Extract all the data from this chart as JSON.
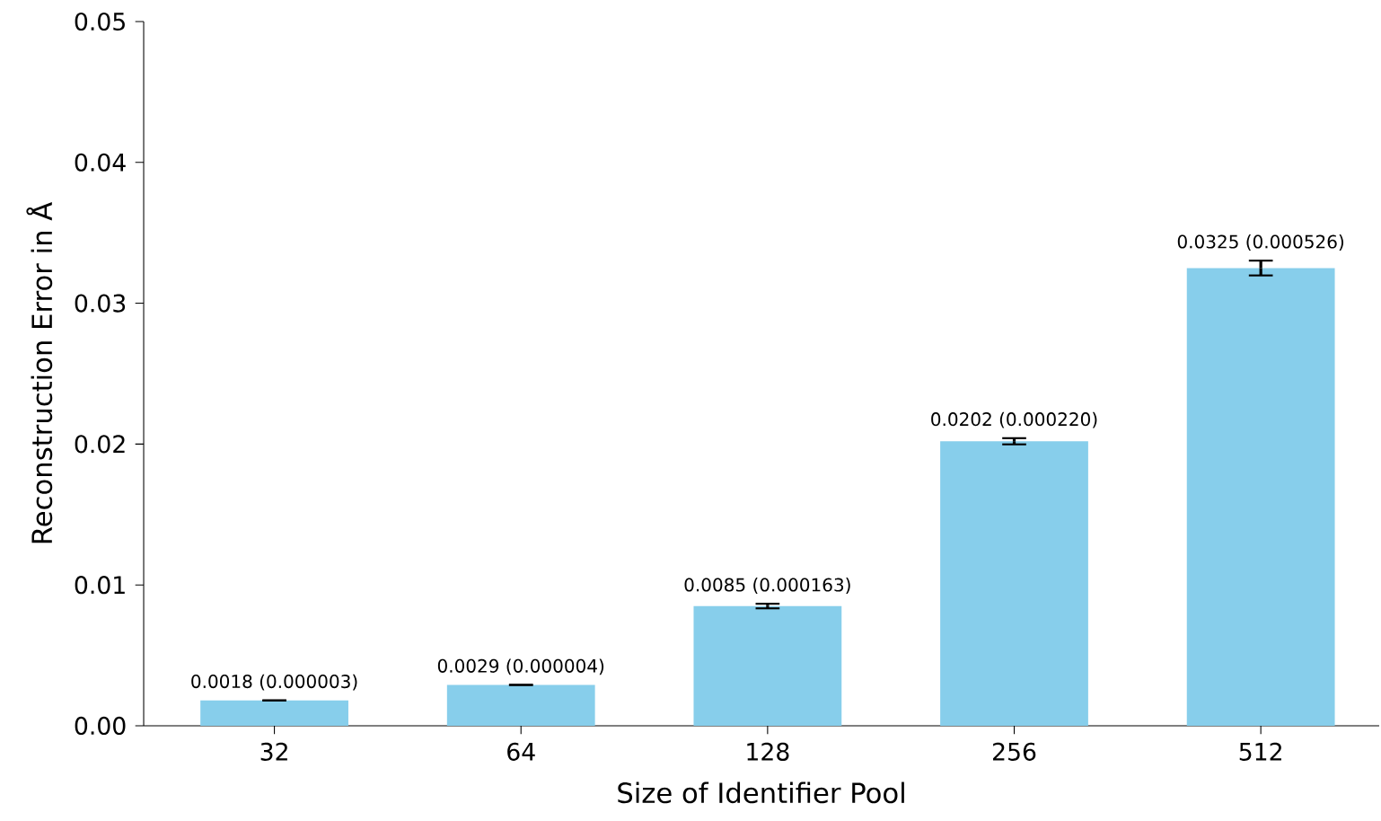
{
  "chart_data": {
    "type": "bar",
    "xlabel": "Size of Identifier Pool",
    "ylabel": "Reconstruction Error in Å",
    "categories": [
      "32",
      "64",
      "128",
      "256",
      "512"
    ],
    "values": [
      0.0018,
      0.0029,
      0.0085,
      0.0202,
      0.0325
    ],
    "errors": [
      3e-06,
      4e-06,
      0.000163,
      0.00022,
      0.000526
    ],
    "value_labels": [
      "0.0018 (0.000003)",
      "0.0029 (0.000004)",
      "0.0085 (0.000163)",
      "0.0202 (0.000220)",
      "0.0325 (0.000526)"
    ],
    "color": "#87ceeb",
    "ylim": [
      0,
      0.05
    ],
    "yticks": [
      {
        "value": 0,
        "label": "0.00"
      },
      {
        "value": 0.01,
        "label": "0.01"
      },
      {
        "value": 0.02,
        "label": "0.02"
      },
      {
        "value": 0.03,
        "label": "0.03"
      },
      {
        "value": 0.04,
        "label": "0.04"
      },
      {
        "value": 0.05,
        "label": "0.05"
      }
    ]
  }
}
